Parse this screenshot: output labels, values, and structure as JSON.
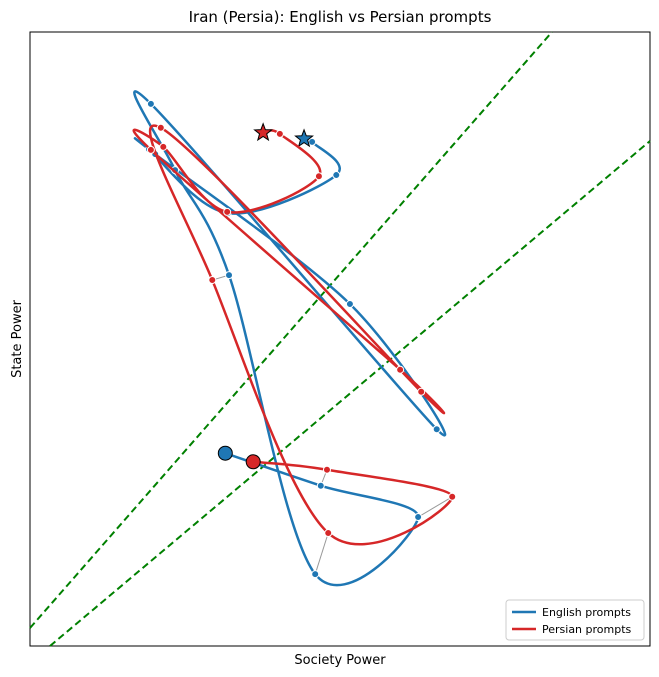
{
  "chart_data": {
    "type": "line",
    "title": "Iran (Persia): English vs Persian prompts",
    "x_label": "Society Power",
    "y_label": "State Power",
    "xlim": [
      0,
      100
    ],
    "ylim": [
      0,
      100
    ],
    "legend": "lower right",
    "series": [
      {
        "name": "English prompts",
        "color": "#1f77b4",
        "x": [
          31.5,
          46.9,
          62.6,
          46.0,
          32.1,
          23.4,
          19.5,
          65.6,
          51.6,
          20.2,
          19.2,
          31.9,
          49.4,
          45.5,
          44.2
        ],
        "values": [
          31.4,
          26.1,
          21.0,
          11.7,
          60.4,
          77.5,
          88.3,
          35.3,
          55.7,
          80.1,
          80.9,
          70.5,
          76.7,
          82.1,
          82.6
        ]
      },
      {
        "name": "Persian prompts",
        "color": "#d62728",
        "x": [
          36.0,
          47.9,
          68.1,
          48.1,
          29.4,
          21.1,
          63.1,
          59.7,
          19.5,
          21.5,
          31.8,
          46.6,
          40.3,
          37.6
        ],
        "values": [
          30.0,
          28.7,
          24.3,
          18.4,
          59.6,
          84.4,
          41.4,
          45.0,
          80.8,
          81.3,
          70.7,
          76.5,
          83.4,
          83.6
        ]
      }
    ]
  }
}
